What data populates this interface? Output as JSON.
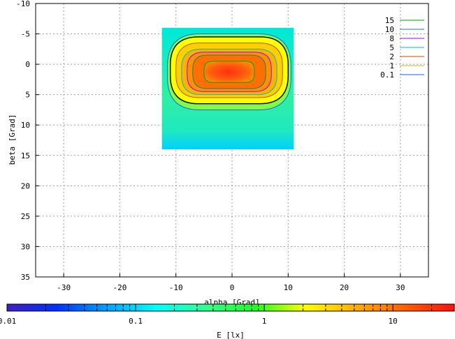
{
  "chart_data": {
    "type": "heatmap",
    "xlabel": "alpha [Grad]",
    "ylabel": "beta [Grad]",
    "xlim": [
      -35,
      35
    ],
    "ylim": [
      -10,
      35
    ],
    "y_inverted": true,
    "grid": true,
    "x_ticks": [
      "-30",
      "-20",
      "-10",
      "0",
      "10",
      "20",
      "30"
    ],
    "y_ticks": [
      "-10",
      "-5",
      "0",
      "5",
      "10",
      "15",
      "20",
      "25",
      "30",
      "35"
    ],
    "data_extent": {
      "alpha": [
        -12.5,
        11
      ],
      "beta": [
        -6,
        14
      ]
    },
    "contours": [
      {
        "level": "15",
        "color": "#00a000",
        "alpha_range": [
          -5,
          4
        ],
        "beta_range": [
          -0.5,
          3
        ]
      },
      {
        "level": "10",
        "color": "#208060",
        "alpha_range": [
          -7,
          6
        ],
        "beta_range": [
          -1.5,
          4
        ]
      },
      {
        "level": "8",
        "color": "#a000ff",
        "alpha_range": [
          -8,
          7
        ],
        "beta_range": [
          -2,
          4.5
        ]
      },
      {
        "level": "5",
        "color": "#00c0c0",
        "alpha_range": [
          -9,
          8
        ],
        "beta_range": [
          -2.5,
          5
        ]
      },
      {
        "level": "2",
        "color": "#c05000",
        "alpha_range": [
          -10,
          9
        ],
        "beta_range": [
          -3.5,
          5.5
        ]
      },
      {
        "level": "1",
        "color": "#c0c000",
        "alpha_range": [
          -11,
          10
        ],
        "beta_range": [
          -4.5,
          6.5
        ]
      },
      {
        "level": "0.1",
        "color": "#2060ff",
        "alpha_range": [
          -11.5,
          10.5
        ],
        "beta_range": [
          -5,
          7.5
        ]
      }
    ],
    "colorbar": {
      "label": "E [lx]",
      "scale": "log",
      "range": [
        0.01,
        30
      ],
      "tick_labels": [
        "0.01",
        "0.1",
        "1",
        "10"
      ],
      "colors": [
        "#4020c0",
        "#0030ff",
        "#00a0ff",
        "#00ffff",
        "#30ff90",
        "#20ff20",
        "#ffff00",
        "#ffb000",
        "#ff6000",
        "#ff1010"
      ]
    },
    "legend_position": "top-right"
  }
}
